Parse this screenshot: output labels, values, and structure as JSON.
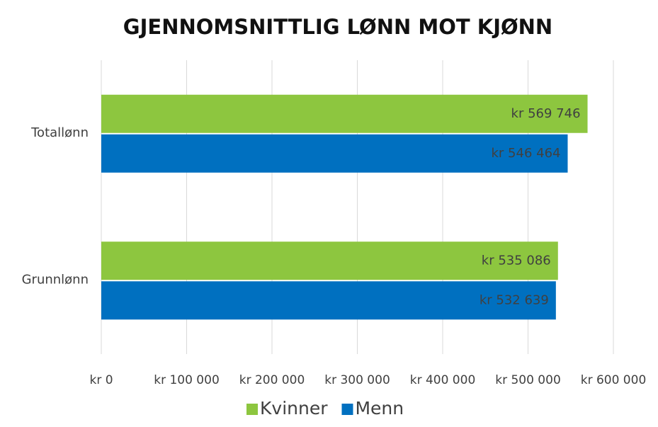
{
  "chart_data": {
    "type": "bar",
    "orientation": "horizontal",
    "title": "GJENNOMSNITTLIG LØNN MOT KJØNN",
    "categories": [
      "Totallønn",
      "Grunnlønn"
    ],
    "series": [
      {
        "name": "Kvinner",
        "color": "#8dc63f",
        "values": [
          569746,
          535086
        ],
        "value_labels": [
          "kr 569 746",
          "kr 535 086"
        ]
      },
      {
        "name": "Menn",
        "color": "#0070c0",
        "values": [
          546464,
          532639
        ],
        "value_labels": [
          "kr 546 464",
          "kr 532 639"
        ]
      }
    ],
    "xlim": [
      0,
      600000
    ],
    "xticks": [
      {
        "value": 0,
        "label": "kr 0"
      },
      {
        "value": 100000,
        "label": "kr 100 000"
      },
      {
        "value": 200000,
        "label": "kr 200 000"
      },
      {
        "value": 300000,
        "label": "kr 300 000"
      },
      {
        "value": 400000,
        "label": "kr 400 000"
      },
      {
        "value": 500000,
        "label": "kr 500 000"
      },
      {
        "value": 600000,
        "label": "kr 600 000"
      }
    ],
    "grid": true,
    "legend": "bottom"
  }
}
